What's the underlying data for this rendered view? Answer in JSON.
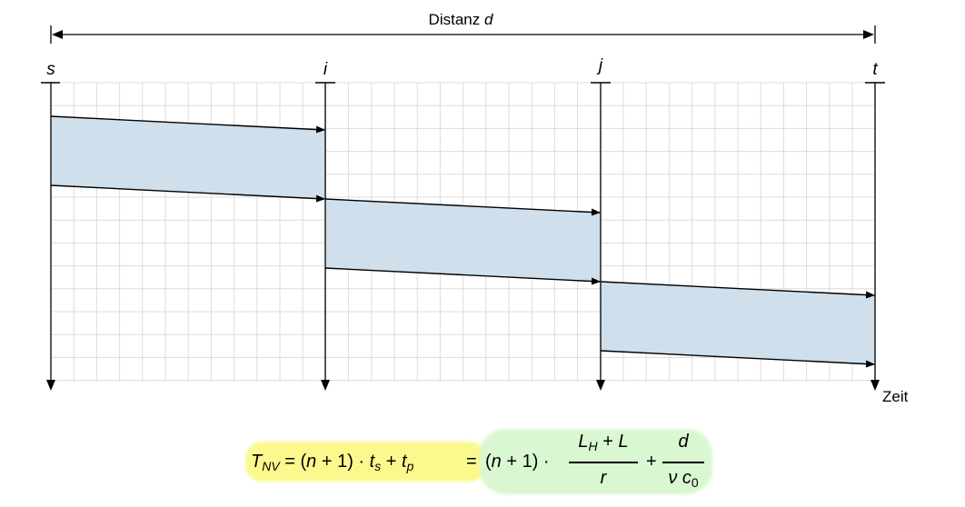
{
  "distance_label": {
    "prefix": "Distanz",
    "var": "d"
  },
  "nodes": [
    {
      "label": "s"
    },
    {
      "label": "i"
    },
    {
      "label": "j"
    },
    {
      "label": "t"
    }
  ],
  "time_axis_label": "Zeit",
  "colors": {
    "band_fill": "#cfdfeb",
    "grid": "#dcdcdc",
    "line": "#000000",
    "highlight_yellow": "#fbf98e",
    "highlight_green": "#d9f7d0"
  },
  "formula": {
    "lhs": "T",
    "lhs_sub": "NV",
    "eq1": "=",
    "t1": "(",
    "n": "n",
    "plus_one": " + 1) · ",
    "ts": "t",
    "ts_sub": "s",
    "plus": " + ",
    "tp": "t",
    "tp_sub": "p",
    "eq2": "=",
    "t2": "(",
    "n2": "n",
    "plus_one2": " + 1) ·",
    "frac1_num_a": "L",
    "frac1_num_a_sub": "H",
    "frac1_num_mid": " + ",
    "frac1_num_b": "L",
    "frac1_den": "r",
    "plus2": "+",
    "frac2_num": "d",
    "frac2_den_a": "ν",
    "frac2_den_b": "c",
    "frac2_den_b_sub": "0"
  }
}
